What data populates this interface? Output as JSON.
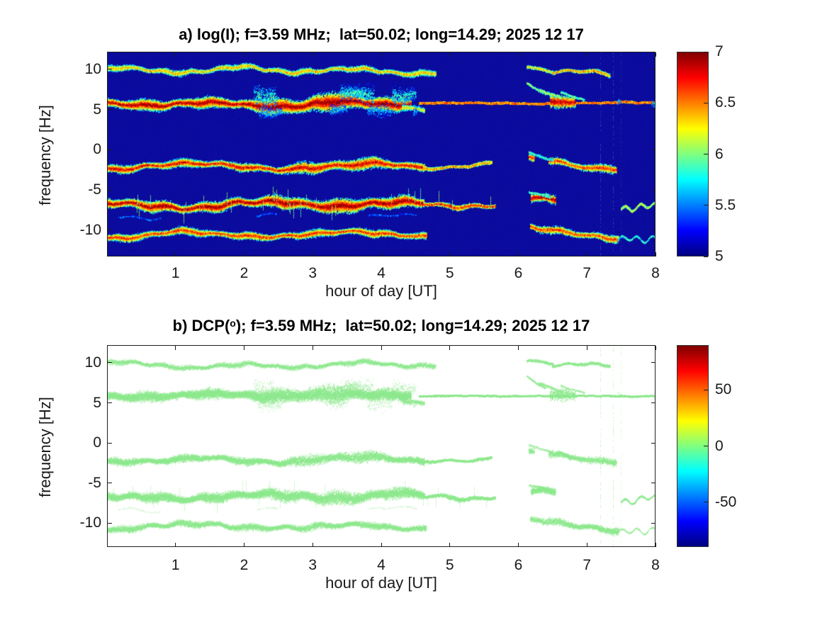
{
  "figure": {
    "background": "#ffffff",
    "text_color": "#262626"
  },
  "panels": [
    {
      "id": "a",
      "title": "a) log(I); f=3.59 MHz;  lat=50.02; long=14.29; 2025 12 17",
      "xlabel": "hour of day [UT]",
      "ylabel": "frequency [Hz]",
      "xticks": [
        1,
        2,
        3,
        4,
        5,
        6,
        7,
        8
      ],
      "yticks": [
        10,
        5,
        0,
        -5,
        -10
      ],
      "colorbar_ticks": [
        7,
        6.5,
        6,
        5.5,
        5
      ],
      "colorbar_min": 5,
      "colorbar_max": 7,
      "plot_background": "#0b0b9d"
    },
    {
      "id": "b",
      "title_prefix": "b) DCP(",
      "title_sup": "o",
      "title_suffix": "); f=3.59 MHz;  lat=50.02; long=14.29; 2025 12 17",
      "xlabel": "hour of day [UT]",
      "ylabel": "frequency [Hz]",
      "xticks": [
        1,
        2,
        3,
        4,
        5,
        6,
        7,
        8
      ],
      "yticks": [
        10,
        5,
        0,
        -5,
        -10
      ],
      "colorbar_ticks": [
        50,
        0,
        -50
      ],
      "colorbar_min": -90,
      "colorbar_max": 90,
      "plot_background": "#ffffff"
    }
  ],
  "chart_data": {
    "type": "heatmap",
    "description": "Doppler spectrogram pair: panel a = log of intensity (jet colormap on dark blue background), panel b = differential circular polarization DCP in degrees (same traces, near-zero values rendered light green on white).",
    "x_range_hours": [
      0,
      8
    ],
    "y_range_hz": [
      -13.2,
      12.2
    ],
    "colormap": {
      "name": "jet",
      "stops": [
        [
          0,
          "#000080"
        ],
        [
          0.125,
          "#0000ff"
        ],
        [
          0.375,
          "#00ffff"
        ],
        [
          0.625,
          "#ffff00"
        ],
        [
          0.875,
          "#ff0000"
        ],
        [
          1,
          "#800000"
        ]
      ]
    },
    "panel_styles": [
      {
        "mode": "heat",
        "clim": [
          5,
          7
        ],
        "bg": "#0b0b9d",
        "density_scale": 1.0,
        "speckles": 2600
      },
      {
        "mode": "scatter",
        "clim": [
          -90,
          90
        ],
        "bg": "#ffffff",
        "dot_color": [
          141,
          233,
          141
        ],
        "density_scale": 0.62,
        "speckles": 520
      }
    ],
    "bands": [
      {
        "name": "band-plus-9.8Hz",
        "center_hz": 9.8,
        "wiggle": {
          "a1": 0.28,
          "T1": 1.7,
          "p1": 0.6,
          "a2": 0.12,
          "T2": 0.42,
          "p2": 2.1
        },
        "segments": [
          {
            "x0": 0,
            "x1": 4.78,
            "c0": 9.95,
            "c1": 9.65,
            "w": 0.22,
            "peak": 6.45,
            "edge": 5.25,
            "density": 20
          },
          {
            "x0": 6.12,
            "x1": 6.5,
            "c0": 10.45,
            "c1": 9.85,
            "w": 0.12,
            "peak": 6.35,
            "edge": 5.4,
            "density": 14,
            "wigglescale": 0.4
          },
          {
            "x0": 6.5,
            "x1": 7.32,
            "c0": 9.85,
            "c1": 9.5,
            "w": 0.14,
            "peak": 6.55,
            "edge": 5.4,
            "density": 14
          }
        ]
      },
      {
        "name": "band-plus-5.9Hz",
        "center_hz": 5.85,
        "wiggle": {
          "a1": 0.2,
          "T1": 1.9,
          "p1": 2.7,
          "a2": 0.1,
          "T2": 0.5,
          "p2": 0.8
        },
        "segments": [
          {
            "x0": 0,
            "x1": 4.42,
            "c0": 5.8,
            "c1": 5.9,
            "w": 0.4,
            "peak": 7.0,
            "edge": 5.2,
            "density": 46,
            "bulge": {
              "x0": 1.9,
              "x1": 4.4,
              "mult": 1.8
            }
          },
          {
            "x0": 4.3,
            "x1": 4.62,
            "c0": 5.6,
            "c1": 5.05,
            "w": 0.3,
            "peak": 6.3,
            "edge": 5.2,
            "density": 16
          },
          {
            "x0": 1.95,
            "x1": 4.55,
            "c0": 6.9,
            "c1": 6.9,
            "w": 0.85,
            "peak": 5.85,
            "edge": 5.1,
            "density": 10,
            "patchy": true
          },
          {
            "x0": 2.1,
            "x1": 4.5,
            "c0": 4.9,
            "c1": 5.0,
            "w": 0.55,
            "peak": 5.6,
            "edge": 5.1,
            "density": 7,
            "patchy": true
          },
          {
            "x0": 4.55,
            "x1": 8.0,
            "c0": 5.85,
            "c1": 5.85,
            "w": 0.05,
            "peak": 6.6,
            "edge": 6.1,
            "density": 26,
            "wigglescale": 0.08
          },
          {
            "x0": 6.1,
            "x1": 7.45,
            "c0": 6.25,
            "c1": 5.95,
            "w": 0.5,
            "peak": 6.9,
            "edge": 5.2,
            "density": 24,
            "patchy": true
          },
          {
            "x0": 6.12,
            "x1": 6.38,
            "c0": 8.35,
            "c1": 7.1,
            "w": 0.1,
            "peak": 6.1,
            "edge": 5.4,
            "density": 9,
            "wigglescale": 0.3
          },
          {
            "x0": 6.3,
            "x1": 6.62,
            "c0": 7.6,
            "c1": 6.4,
            "w": 0.1,
            "peak": 6.2,
            "edge": 5.4,
            "density": 9,
            "wigglescale": 0.3
          },
          {
            "x0": 6.62,
            "x1": 6.95,
            "c0": 7.2,
            "c1": 6.3,
            "w": 0.1,
            "peak": 6.0,
            "edge": 5.4,
            "density": 7,
            "wigglescale": 0.3
          },
          {
            "x0": 7.45,
            "x1": 8,
            "c0": 5.95,
            "c1": 5.9,
            "w": 0.3,
            "peak": 5.7,
            "edge": 5.2,
            "density": 4,
            "sparse": true
          }
        ]
      },
      {
        "name": "band-minus-1.8Hz",
        "center_hz": -1.8,
        "wiggle": {
          "a1": 0.3,
          "T1": 2.3,
          "p1": 4.1,
          "a2": 0.13,
          "T2": 0.55,
          "p2": 1.3
        },
        "segments": [
          {
            "x0": 0,
            "x1": 4.62,
            "c0": -2.15,
            "c1": -1.85,
            "w": 0.3,
            "peak": 6.85,
            "edge": 5.2,
            "density": 30,
            "bulge": {
              "x0": 2.3,
              "x1": 4.5,
              "mult": 1.6
            }
          },
          {
            "x0": 4.62,
            "x1": 5.6,
            "c0": -1.95,
            "c1": -1.95,
            "w": 0.12,
            "peak": 6.55,
            "edge": 5.5,
            "density": 18
          },
          {
            "x0": 6.15,
            "x1": 7.42,
            "c0": -1.2,
            "c1": -2.1,
            "w": 0.3,
            "peak": 6.7,
            "edge": 5.3,
            "density": 20,
            "patchy": true
          },
          {
            "x0": 6.15,
            "x1": 6.5,
            "c0": -0.35,
            "c1": -1.15,
            "w": 0.09,
            "peak": 5.9,
            "edge": 5.4,
            "density": 7,
            "wigglescale": 0.3
          },
          {
            "x0": 7.5,
            "x1": 8,
            "c0": -1.85,
            "c1": -1.95,
            "w": 0.09,
            "peak": 5.8,
            "edge": 5.3,
            "density": 5,
            "sparse": true,
            "wavy": true
          }
        ]
      },
      {
        "name": "band-minus-6.6Hz",
        "center_hz": -6.6,
        "wiggle": {
          "a1": 0.3,
          "T1": 2.1,
          "p1": 1.3,
          "a2": 0.15,
          "T2": 0.5,
          "p2": 3.2
        },
        "segments": [
          {
            "x0": 0,
            "x1": 4.62,
            "c0": -6.85,
            "c1": -6.55,
            "w": 0.4,
            "peak": 7.0,
            "edge": 5.2,
            "density": 40,
            "bulge": {
              "x0": 2.2,
              "x1": 4.5,
              "mult": 1.4
            },
            "spikes": true
          },
          {
            "x0": 4.62,
            "x1": 5.65,
            "c0": -6.7,
            "c1": -6.65,
            "w": 0.18,
            "peak": 6.8,
            "edge": 5.4,
            "density": 22,
            "spikes": true
          },
          {
            "x0": 5.65,
            "x1": 6.15,
            "c0": -6.7,
            "c1": -6.6,
            "w": 0.05,
            "peak": 6.2,
            "edge": 5.6,
            "density": 3,
            "sparse": true
          },
          {
            "x0": 6.15,
            "x1": 7.5,
            "c0": -6.1,
            "c1": -7.0,
            "w": 0.42,
            "peak": 7.0,
            "edge": 5.2,
            "density": 36,
            "patchy": true
          },
          {
            "x0": 6.15,
            "x1": 6.45,
            "c0": -5.25,
            "c1": -6.0,
            "w": 0.1,
            "peak": 6.0,
            "edge": 5.4,
            "density": 7,
            "wigglescale": 0.3
          },
          {
            "x0": 7.5,
            "x1": 8,
            "c0": -6.95,
            "c1": -6.9,
            "w": 0.09,
            "peak": 6.25,
            "edge": 5.5,
            "density": 12,
            "wavy": true
          },
          {
            "x0": 0,
            "x1": 4.5,
            "c0": -8.5,
            "c1": -8.45,
            "w": 0.05,
            "peak": 5.45,
            "edge": 5.2,
            "density": 2,
            "sparse": true
          }
        ]
      },
      {
        "name": "band-minus-10.4Hz",
        "center_hz": -10.4,
        "wiggle": {
          "a1": 0.35,
          "T1": 2.5,
          "p1": 5.1,
          "a2": 0.12,
          "T2": 0.5,
          "p2": 0.4
        },
        "segments": [
          {
            "x0": 0,
            "x1": 4.65,
            "c0": -10.6,
            "c1": -10.3,
            "w": 0.28,
            "peak": 6.75,
            "edge": 5.2,
            "density": 26
          },
          {
            "x0": 6.18,
            "x1": 7.45,
            "c0": -9.9,
            "c1": -10.75,
            "w": 0.28,
            "peak": 6.7,
            "edge": 5.3,
            "density": 22,
            "patchy": true
          },
          {
            "x0": 7.45,
            "x1": 8,
            "c0": -10.75,
            "c1": -10.7,
            "w": 0.08,
            "peak": 5.9,
            "edge": 5.4,
            "density": 6,
            "sparse": true,
            "wavy": true
          }
        ]
      }
    ],
    "artifacts": {
      "vertical_stripes": [
        {
          "hour": 7.19,
          "alpha": 0.3
        },
        {
          "hour": 7.38,
          "alpha": 0.3
        },
        {
          "hour": 7.49,
          "alpha": 0.16
        }
      ]
    }
  }
}
